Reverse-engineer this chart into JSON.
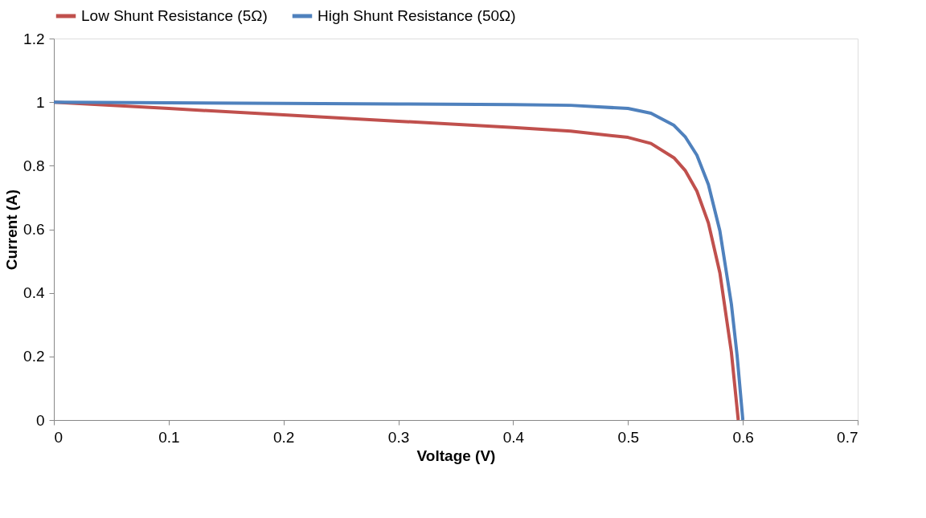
{
  "chart_data": {
    "type": "line",
    "xlabel": "Voltage (V)",
    "ylabel": "Current (A)",
    "xlim": [
      0,
      0.7
    ],
    "xticks": [
      0,
      0.1,
      0.2,
      0.3,
      0.4,
      0.5,
      0.6,
      0.7
    ],
    "ylim": [
      0,
      1.2
    ],
    "yticks": [
      0,
      0.2,
      0.4,
      0.6,
      0.8,
      1,
      1.2
    ],
    "grid": false,
    "legend": "top",
    "marker": "none",
    "line_style": "solid",
    "series": [
      {
        "name": "Low Shunt Resistance (5Ω)",
        "color": "#c0504d",
        "x": [
          0,
          0.1,
          0.2,
          0.3,
          0.4,
          0.45,
          0.5,
          0.52,
          0.54,
          0.55,
          0.56,
          0.57,
          0.58,
          0.59,
          0.596
        ],
        "values": [
          1,
          0.98,
          0.96,
          0.94,
          0.92,
          0.909,
          0.889,
          0.87,
          0.825,
          0.784,
          0.72,
          0.62,
          0.463,
          0.214,
          0
        ]
      },
      {
        "name": "High Shunt Resistance (50Ω)",
        "color": "#4f81bd",
        "x": [
          0,
          0.1,
          0.2,
          0.3,
          0.4,
          0.45,
          0.5,
          0.52,
          0.54,
          0.55,
          0.56,
          0.57,
          0.58,
          0.59,
          0.595,
          0.6
        ],
        "values": [
          1,
          0.998,
          0.996,
          0.994,
          0.992,
          0.99,
          0.98,
          0.965,
          0.927,
          0.89,
          0.833,
          0.741,
          0.595,
          0.365,
          0.203,
          0
        ]
      }
    ]
  }
}
